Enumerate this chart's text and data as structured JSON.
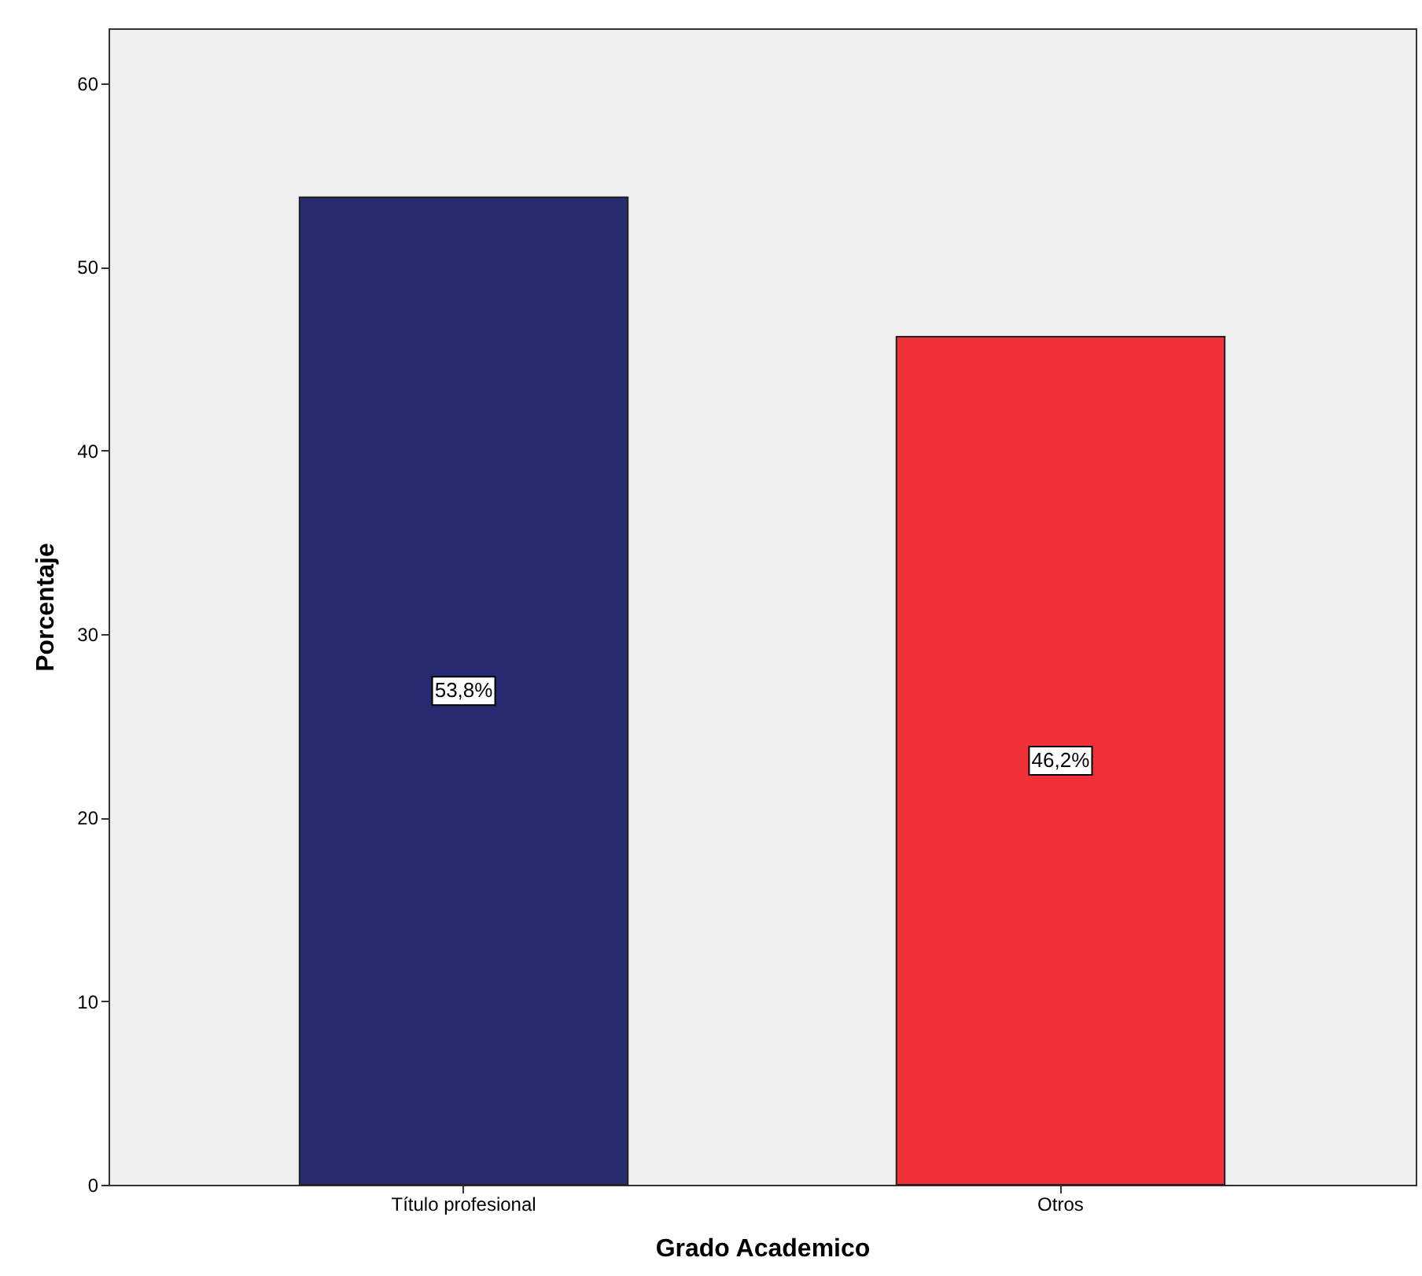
{
  "chart_data": {
    "type": "bar",
    "xlabel": "Grado Academico",
    "ylabel": "Porcentaje",
    "categories": [
      "Título profesional",
      "Otros"
    ],
    "values": [
      53.8,
      46.2
    ],
    "colors": [
      "#272a6e",
      "#f03238"
    ],
    "value_labels": [
      "53,8%",
      "46,2%"
    ],
    "ylim": [
      0,
      63
    ],
    "yticks": [
      0,
      10,
      20,
      30,
      40,
      50,
      60
    ],
    "grid": false,
    "legend": false
  }
}
